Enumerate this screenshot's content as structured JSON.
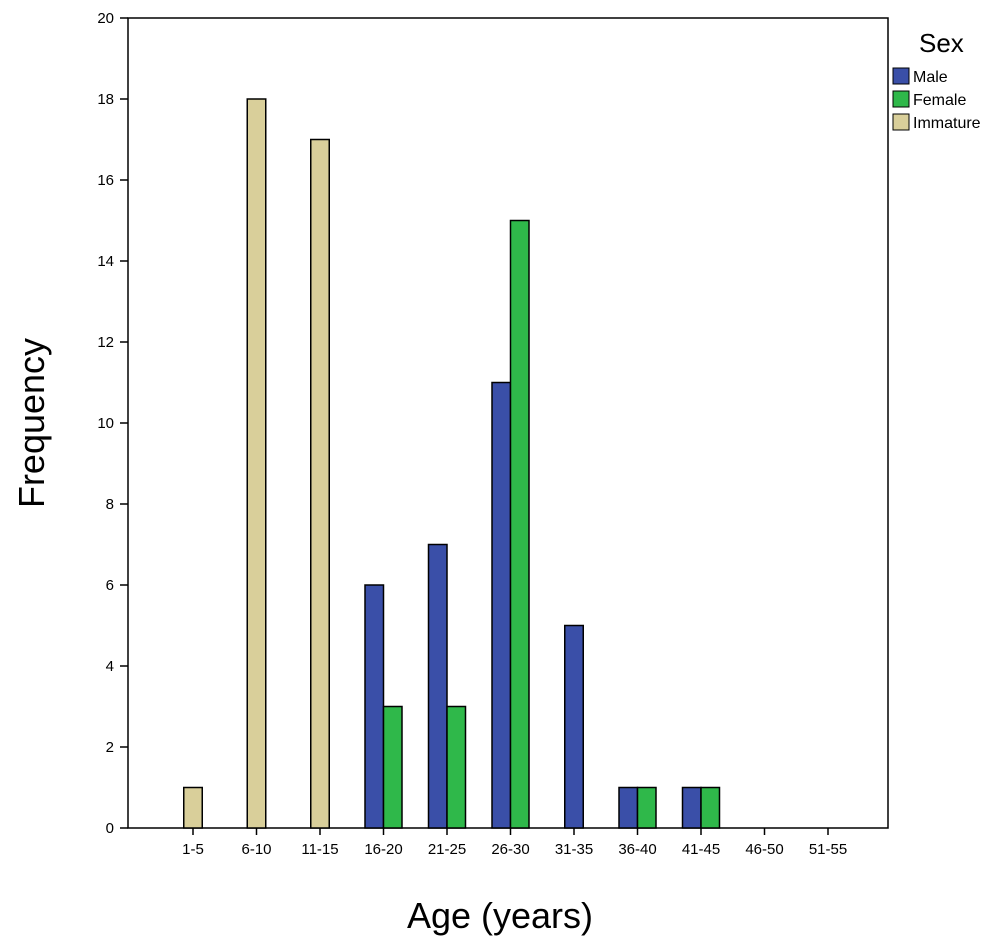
{
  "chart_data": {
    "type": "bar",
    "xlabel": "Age (years)",
    "ylabel": "Frequency",
    "categories": [
      "1-5",
      "6-10",
      "11-15",
      "16-20",
      "21-25",
      "26-30",
      "31-35",
      "36-40",
      "41-45",
      "46-50",
      "51-55"
    ],
    "series": [
      {
        "name": "Male",
        "color": "#3a4fa8",
        "values": [
          0,
          0,
          0,
          6,
          7,
          11,
          5,
          1,
          1,
          0,
          0
        ]
      },
      {
        "name": "Female",
        "color": "#2fb84a",
        "values": [
          0,
          0,
          0,
          3,
          3,
          15,
          0,
          1,
          1,
          0,
          0
        ]
      },
      {
        "name": "Immature",
        "color": "#d9cf9a",
        "values": [
          1,
          18,
          17,
          0,
          0,
          0,
          0,
          0,
          0,
          0,
          0
        ]
      }
    ],
    "ylim": [
      0,
      20
    ],
    "yticks": [
      0,
      2,
      4,
      6,
      8,
      10,
      12,
      14,
      16,
      18,
      20
    ],
    "legend": {
      "title": "Sex",
      "placement": "top-right outside"
    },
    "grid": false
  }
}
